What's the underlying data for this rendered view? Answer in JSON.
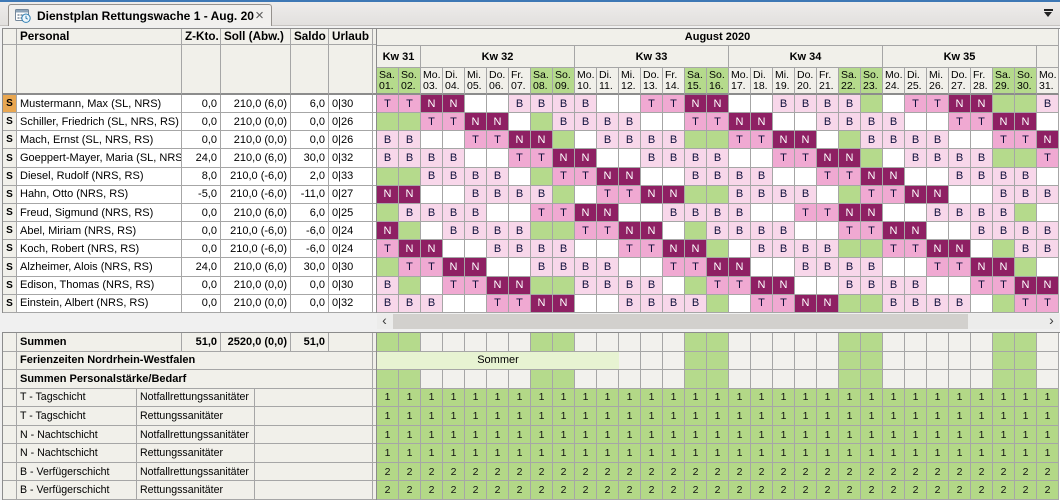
{
  "tab": {
    "title": "Dienstplan Rettungswache 1 - Aug. 20"
  },
  "icons": {
    "close": "×",
    "scroll_left": "‹",
    "scroll_right": "›",
    "tab_icon": "calendar-clock",
    "tab_list": "chevron-down"
  },
  "colors": {
    "shift_t": "#F0A9D2",
    "shift_n": "#8E2063",
    "shift_b": "#F8D7EA",
    "weekend_green": "#B5DA8C",
    "demand_green": "#B3D887",
    "holiday_band": "#E7F3D2",
    "header_beige": "#F1F0EA",
    "grid_border": "#A6A6A6",
    "selected_row": "#E9A751",
    "tab_accent": "#3E78B5",
    "letter_color": "#10103C"
  },
  "row_flag": "S",
  "columns": {
    "personal": "Personal",
    "zkto": "Z-Kto.",
    "soll": "Soll (Abw.)",
    "saldo": "Saldo",
    "urlaub": "Urlaub"
  },
  "calendar": {
    "month_title": "August 2020",
    "weeks": [
      {
        "label": "Kw 31",
        "span": 2
      },
      {
        "label": "Kw 32",
        "span": 7
      },
      {
        "label": "Kw 33",
        "span": 7
      },
      {
        "label": "Kw 34",
        "span": 7
      },
      {
        "label": "Kw 35",
        "span": 7
      },
      {
        "label": "",
        "span": 1
      }
    ],
    "days": [
      {
        "dow": "Sa.",
        "date": "01.",
        "weekend": true
      },
      {
        "dow": "So.",
        "date": "02.",
        "weekend": true
      },
      {
        "dow": "Mo.",
        "date": "03.",
        "weekend": false
      },
      {
        "dow": "Di.",
        "date": "04.",
        "weekend": false
      },
      {
        "dow": "Mi.",
        "date": "05.",
        "weekend": false
      },
      {
        "dow": "Do.",
        "date": "06.",
        "weekend": false
      },
      {
        "dow": "Fr.",
        "date": "07.",
        "weekend": false
      },
      {
        "dow": "Sa.",
        "date": "08.",
        "weekend": true
      },
      {
        "dow": "So.",
        "date": "09.",
        "weekend": true
      },
      {
        "dow": "Mo.",
        "date": "10.",
        "weekend": false
      },
      {
        "dow": "Di.",
        "date": "11.",
        "weekend": false
      },
      {
        "dow": "Mi.",
        "date": "12.",
        "weekend": false
      },
      {
        "dow": "Do.",
        "date": "13.",
        "weekend": false
      },
      {
        "dow": "Fr.",
        "date": "14.",
        "weekend": false
      },
      {
        "dow": "Sa.",
        "date": "15.",
        "weekend": true
      },
      {
        "dow": "So.",
        "date": "16.",
        "weekend": true
      },
      {
        "dow": "Mo.",
        "date": "17.",
        "weekend": false
      },
      {
        "dow": "Di.",
        "date": "18.",
        "weekend": false
      },
      {
        "dow": "Mi.",
        "date": "19.",
        "weekend": false
      },
      {
        "dow": "Do.",
        "date": "20.",
        "weekend": false
      },
      {
        "dow": "Fr.",
        "date": "21.",
        "weekend": false
      },
      {
        "dow": "Sa.",
        "date": "22.",
        "weekend": true
      },
      {
        "dow": "So.",
        "date": "23.",
        "weekend": true
      },
      {
        "dow": "Mo.",
        "date": "24.",
        "weekend": false
      },
      {
        "dow": "Di.",
        "date": "25.",
        "weekend": false
      },
      {
        "dow": "Mi.",
        "date": "26.",
        "weekend": false
      },
      {
        "dow": "Do.",
        "date": "27.",
        "weekend": false
      },
      {
        "dow": "Fr.",
        "date": "28.",
        "weekend": false
      },
      {
        "dow": "Sa.",
        "date": "29.",
        "weekend": true
      },
      {
        "dow": "So.",
        "date": "30.",
        "weekend": true
      },
      {
        "dow": "Mo.",
        "date": "31.",
        "weekend": false
      }
    ]
  },
  "employees": [
    {
      "name": "Mustermann, Max (SL, NRS)",
      "zkto": "0,0",
      "soll": "210,0 (6,0)",
      "saldo": "6,0",
      "urlaub": "0|30",
      "selected": true,
      "shifts": "TTNN..BBBB..TTNN..BBBB..TTNN..B"
    },
    {
      "name": "Schiller, Friedrich (SL, NRS, RS)",
      "zkto": "0,0",
      "soll": "210,0 (0,0)",
      "saldo": "0,0",
      "urlaub": "0|26",
      "selected": false,
      "shifts": "..TTNN..BBBB..TTNN..BBBB..TTNN."
    },
    {
      "name": "Mach, Ernst (SL, NRS, RS)",
      "zkto": "0,0",
      "soll": "210,0 (0,0)",
      "saldo": "0,0",
      "urlaub": "0|26",
      "selected": false,
      "shifts": "BB..TTNN..BBBB..TTNN..BBBB..TTN"
    },
    {
      "name": "Goeppert-Mayer, Maria (SL, NRS, RS)",
      "zkto": "24,0",
      "soll": "210,0 (6,0)",
      "saldo": "30,0",
      "urlaub": "0|32",
      "selected": false,
      "shifts": "BBBB..TTNN..BBBB..TTNN..BBBB..T"
    },
    {
      "name": "Diesel, Rudolf (NRS, RS)",
      "zkto": "8,0",
      "soll": "210,0 (-6,0)",
      "saldo": "2,0",
      "urlaub": "0|33",
      "selected": false,
      "shifts": "..BBBB..TTNN..BBBB..TTNN..BBBB."
    },
    {
      "name": "Hahn, Otto (NRS, RS)",
      "zkto": "-5,0",
      "soll": "210,0 (-6,0)",
      "saldo": "-11,0",
      "urlaub": "0|27",
      "selected": false,
      "shifts": "NN..BBBB..TTNN..BBBB..TTNN..BBB"
    },
    {
      "name": "Freud, Sigmund (NRS, RS)",
      "zkto": "0,0",
      "soll": "210,0 (6,0)",
      "saldo": "6,0",
      "urlaub": "0|25",
      "selected": false,
      "shifts": ".BBBB..TTNN..BBBB..TTNN..BBBB.."
    },
    {
      "name": "Abel, Miriam (NRS, RS)",
      "zkto": "0,0",
      "soll": "210,0 (-6,0)",
      "saldo": "-6,0",
      "urlaub": "0|24",
      "selected": false,
      "shifts": "N..BBBB..TTNN..BBBB..TTNN..BBBB"
    },
    {
      "name": "Koch, Robert (NRS, RS)",
      "zkto": "0,0",
      "soll": "210,0 (-6,0)",
      "saldo": "-6,0",
      "urlaub": "0|24",
      "selected": false,
      "shifts": "TNN..BBBB..TTNN..BBBB..TTNN..BB"
    },
    {
      "name": "Alzheimer, Alois (NRS, RS)",
      "zkto": "24,0",
      "soll": "210,0 (6,0)",
      "saldo": "30,0",
      "urlaub": "0|30",
      "selected": false,
      "shifts": ".TTNN..BBBB..TTNN..BBBB..TTNN.."
    },
    {
      "name": "Edison, Thomas (NRS, RS)",
      "zkto": "0,0",
      "soll": "210,0 (0,0)",
      "saldo": "0,0",
      "urlaub": "0|30",
      "selected": false,
      "shifts": "B..TTNN..BBBB..TTNN..BBBB..TTNN"
    },
    {
      "name": "Einstein, Albert (NRS, RS)",
      "zkto": "0,0",
      "soll": "210,0 (0,0)",
      "saldo": "0,0",
      "urlaub": "0|32",
      "selected": false,
      "shifts": "BBB..TTNN..BBBB..TTNN..BBBB..TT"
    }
  ],
  "summary": {
    "summen": {
      "label": "Summen",
      "zkto": "51,0",
      "soll": "2520,0 (0,0)",
      "saldo": "51,0",
      "urlaub": ""
    },
    "ferienzeiten": {
      "label": "Ferienzeiten Nordrhein-Westfalen",
      "band_label": "Sommer",
      "band_from_day": 1,
      "band_to_day": 11
    },
    "staerke": {
      "label": "Summen Personalstärke/Bedarf"
    },
    "bedarf": [
      {
        "shift": "T - Tagschicht",
        "qualification": "Notfallrettungssanitäter",
        "values": "1111111111111111111111111111111"
      },
      {
        "shift": "T - Tagschicht",
        "qualification": "Rettungssanitäter",
        "values": "1111111111111111111111111111111"
      },
      {
        "shift": "N - Nachtschicht",
        "qualification": "Notfallrettungssanitäter",
        "values": "1111111111111111111111111111111"
      },
      {
        "shift": "N - Nachtschicht",
        "qualification": "Rettungssanitäter",
        "values": "1111111111111111111111111111111"
      },
      {
        "shift": "B - Verfügerschicht",
        "qualification": "Notfallrettungssanitäter",
        "values": "2222222222222222222222222222222"
      },
      {
        "shift": "B - Verfügerschicht",
        "qualification": "Rettungssanitäter",
        "values": "2222222222222222222222222222222"
      }
    ]
  }
}
